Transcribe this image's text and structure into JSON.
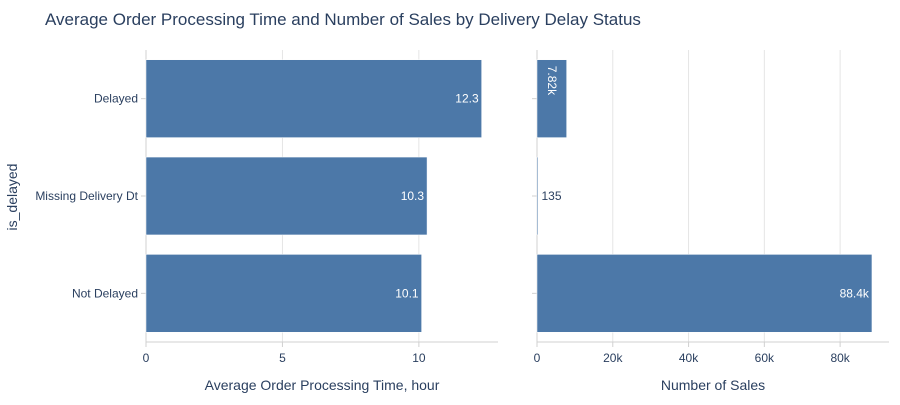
{
  "title": "Average Order Processing Time and Number of Sales by Delivery Delay Status",
  "colors": {
    "bar": "#4c78a8",
    "text": "#2a3f5f",
    "grid": "#e5e5e5",
    "axis": "#d0d0d0",
    "label_inside": "#ffffff",
    "label_outside": "#2a3f5f"
  },
  "chart_data": [
    {
      "type": "bar",
      "orientation": "horizontal",
      "categories": [
        "Delayed",
        "Missing Delivery Dt",
        "Not Delayed"
      ],
      "values": [
        12.3,
        10.3,
        10.1
      ],
      "data_labels": [
        "12.3",
        "10.3",
        "10.1"
      ],
      "xlabel": "Average Order Processing Time, hour",
      "ylabel": "is_delayed",
      "xlim": [
        0,
        12.9
      ],
      "xticks": [
        0,
        5,
        10
      ],
      "xtick_labels": [
        "0",
        "5",
        "10"
      ],
      "grid": true
    },
    {
      "type": "bar",
      "orientation": "horizontal",
      "categories": [
        "Delayed",
        "Missing Delivery Dt",
        "Not Delayed"
      ],
      "values": [
        7820,
        135,
        88400
      ],
      "data_labels": [
        "7.82k",
        "135",
        "88.4k"
      ],
      "xlabel": "Number of Sales",
      "xlim": [
        0,
        92900
      ],
      "xticks": [
        0,
        20000,
        40000,
        60000,
        80000
      ],
      "xtick_labels": [
        "0",
        "20k",
        "40k",
        "60k",
        "80k"
      ],
      "grid": true
    }
  ]
}
